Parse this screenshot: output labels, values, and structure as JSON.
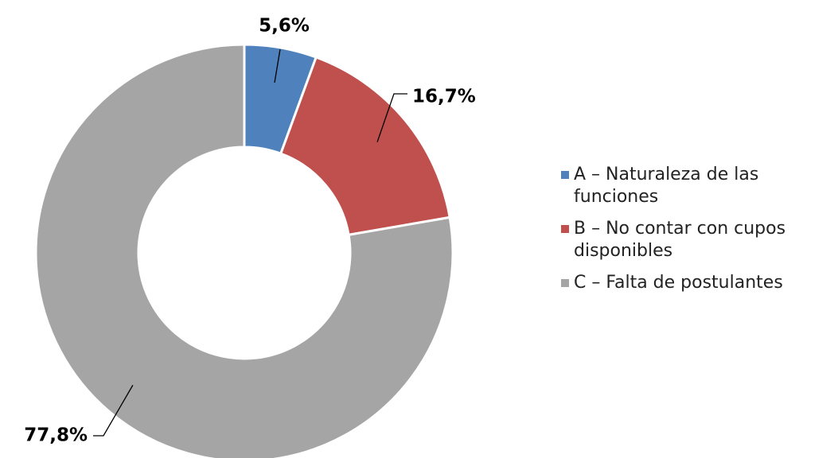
{
  "chart_data": {
    "type": "donut",
    "series": [
      {
        "name": "A – Naturaleza de las funciones",
        "color": "#4f81bd",
        "values": [
          5.6
        ],
        "value_labels": [
          "5,6%"
        ]
      },
      {
        "name": "B – No contar con cupos disponibles",
        "color": "#c0504d",
        "values": [
          16.7
        ],
        "value_labels": [
          "16,7%"
        ]
      },
      {
        "name": "C – Falta de postulantes",
        "color": "#a5a5a5",
        "values": [
          77.8
        ],
        "value_labels": [
          "77,8%"
        ]
      }
    ],
    "legend": "right"
  }
}
